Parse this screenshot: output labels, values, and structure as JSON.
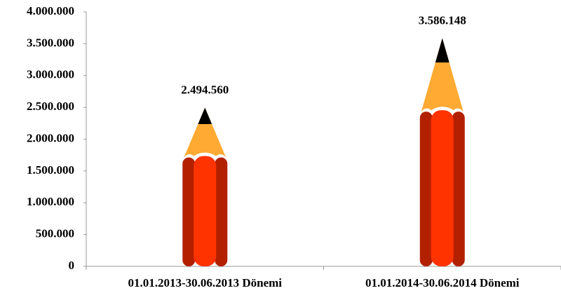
{
  "chart_data": {
    "type": "bar",
    "categories": [
      "01.01.2013-30.06.2013 Dönemi",
      "01.01.2014-30.06.2014 Dönemi"
    ],
    "values": [
      2494560,
      3586148
    ],
    "value_labels": [
      "2.494.560",
      "3.586.148"
    ],
    "colors": {
      "body": "#ff3300",
      "edge": "#b32000",
      "wood": "#ffaa33",
      "lead": "#000000"
    },
    "ylim": [
      0,
      4000000
    ],
    "yticks": [
      0,
      {
        "value": 500000,
        "label": "500.000"
      },
      {
        "value": 1000000,
        "label": "1.000.000"
      },
      {
        "value": 1500000,
        "label": "1.500.000"
      },
      {
        "value": 2000000,
        "label": "2.000.000"
      },
      {
        "value": 2500000,
        "label": "2.500.000"
      },
      {
        "value": 3000000,
        "label": "3.000.000"
      },
      {
        "value": 3500000,
        "label": "3.500.000"
      },
      {
        "value": 4000000,
        "label": "4.000.000"
      }
    ],
    "grid": false
  }
}
